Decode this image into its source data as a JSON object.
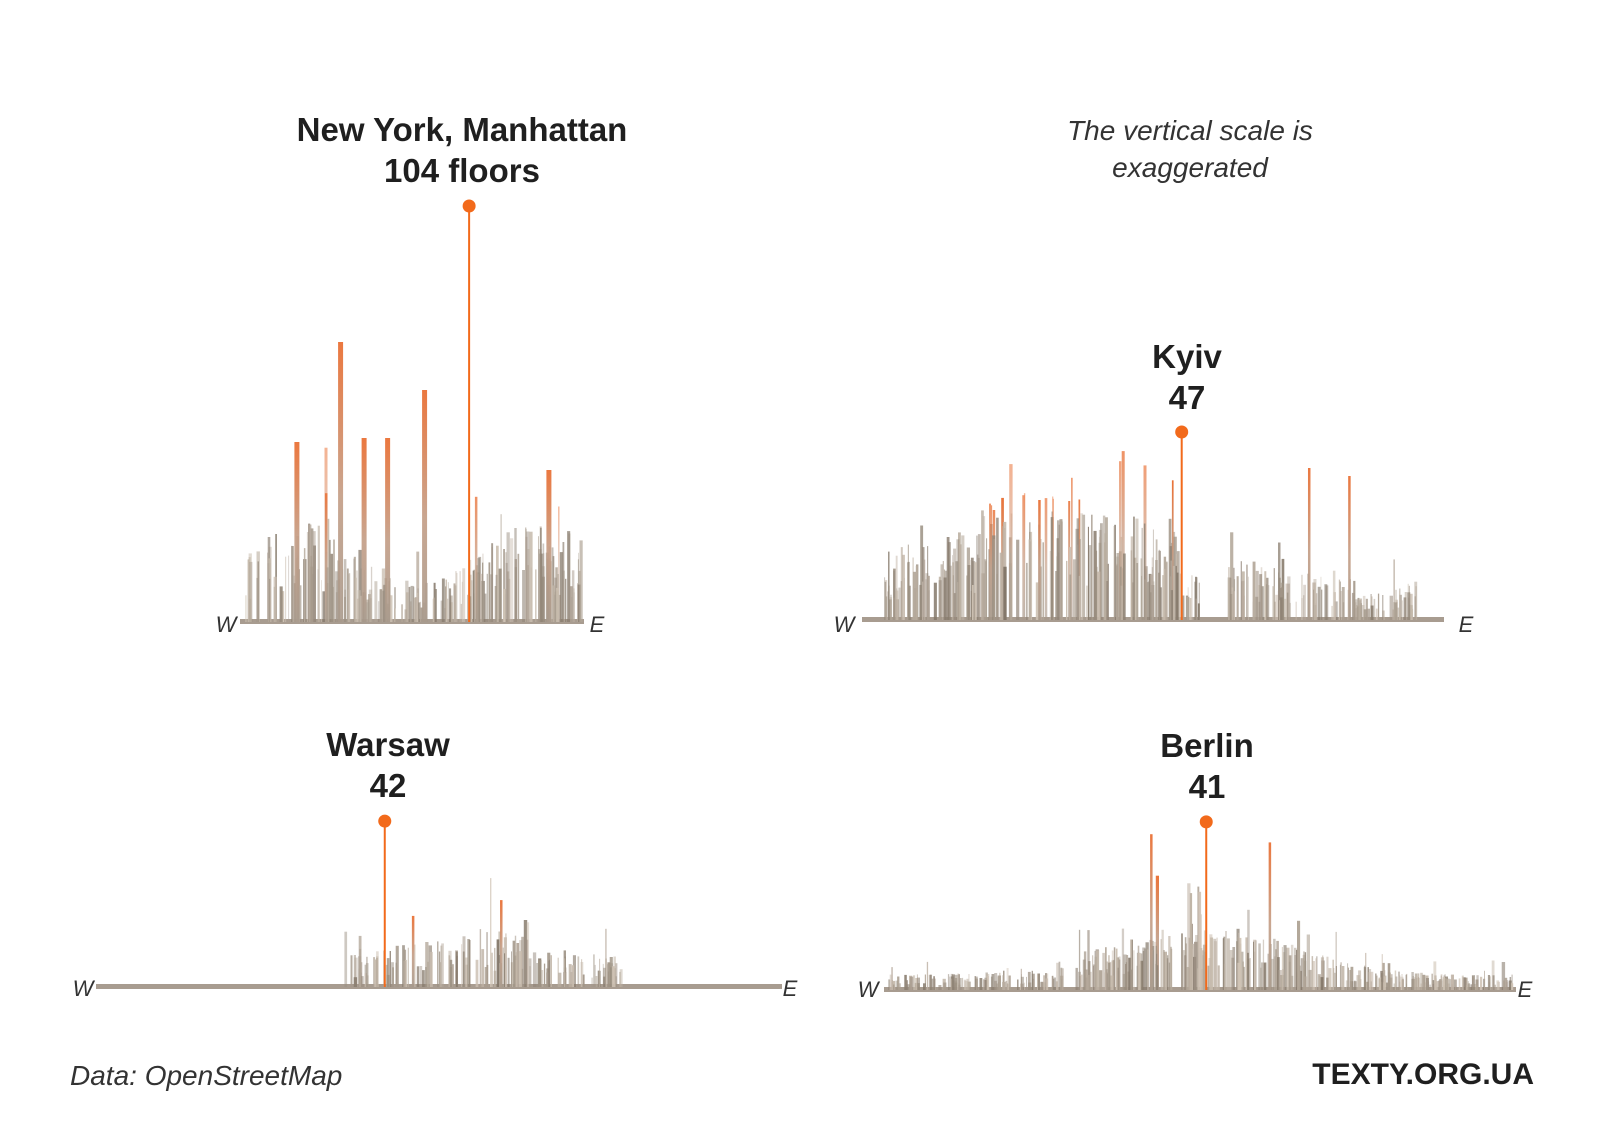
{
  "note": [
    "The vertical scale is",
    "exaggerated"
  ],
  "source": "Data: OpenStreetMap",
  "brand": "TEXTY.ORG.UA",
  "colors": {
    "accent": "#f26a1b",
    "building": "#b3a699",
    "building_dark": "#6f6459",
    "text": "#1f1f1f"
  },
  "chart_data": [
    {
      "type": "bar",
      "city": "New York, Manhattan",
      "value_label": "104 floors",
      "max_floors": 104,
      "axis": {
        "west": "W",
        "east": "E"
      },
      "peaks": [
        {
          "pos": 0.67,
          "floors": 104
        },
        {
          "pos": 0.28,
          "floors": 70
        },
        {
          "pos": 0.15,
          "floors": 45
        },
        {
          "pos": 0.35,
          "floors": 46
        },
        {
          "pos": 0.42,
          "floors": 46
        },
        {
          "pos": 0.53,
          "floors": 58
        },
        {
          "pos": 0.9,
          "floors": 38
        }
      ]
    },
    {
      "type": "bar",
      "city": "Kyiv",
      "value_label": "47",
      "max_floors": 47,
      "axis": {
        "west": "W",
        "east": "E"
      },
      "peaks": [
        {
          "pos": 0.55,
          "floors": 47
        },
        {
          "pos": 0.3,
          "floors": 30
        },
        {
          "pos": 0.77,
          "floors": 38
        },
        {
          "pos": 0.84,
          "floors": 36
        }
      ]
    },
    {
      "type": "bar",
      "city": "Warsaw",
      "value_label": "42",
      "max_floors": 42,
      "axis": {
        "west": "W",
        "east": "E"
      },
      "peaks": [
        {
          "pos": 0.42,
          "floors": 42
        },
        {
          "pos": 0.59,
          "floors": 22
        },
        {
          "pos": 0.46,
          "floors": 18
        }
      ]
    },
    {
      "type": "bar",
      "city": "Berlin",
      "value_label": "41",
      "max_floors": 41,
      "axis": {
        "west": "W",
        "east": "E"
      },
      "peaks": [
        {
          "pos": 0.51,
          "floors": 41
        },
        {
          "pos": 0.42,
          "floors": 38
        },
        {
          "pos": 0.61,
          "floors": 36
        }
      ]
    }
  ]
}
